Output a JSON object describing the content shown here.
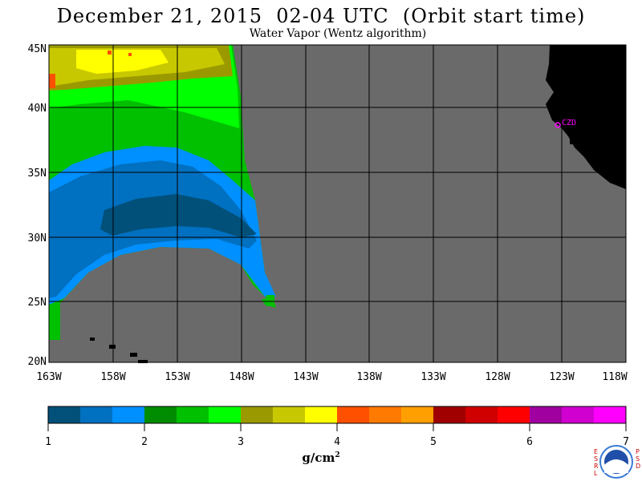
{
  "title": "December 21, 2015  02-04 UTC  (Orbit start time)",
  "subtitle": "Water Vapor (Wentz algorithm)",
  "map": {
    "lat_labels": [
      "45N",
      "40N",
      "35N",
      "30N",
      "25N",
      "20N"
    ],
    "lon_labels": [
      "163W",
      "158W",
      "153W",
      "148W",
      "143W",
      "138W",
      "133W",
      "128W",
      "123W",
      "118W"
    ],
    "station_label": "CZD",
    "colors": {
      "background": "#6a6a6a",
      "land": "#000000",
      "grid": "#000000",
      "station": "#ff00ff"
    }
  },
  "colorbar": {
    "ticks": [
      "1",
      "2",
      "3",
      "4",
      "5",
      "6",
      "7"
    ],
    "unit_base": "g/cm",
    "unit_exp": "2",
    "colors": [
      "#00507a",
      "#0070c0",
      "#0090ff",
      "#008c00",
      "#00c000",
      "#00ff00",
      "#9a9a00",
      "#c8c800",
      "#ffff00",
      "#ff5000",
      "#ff7a00",
      "#ffa000",
      "#a00000",
      "#d00000",
      "#ff0000",
      "#a000a0",
      "#d000d0",
      "#ff00ff"
    ]
  },
  "logo": {
    "left_letters": "ESRL",
    "right_letters": "PSD",
    "name": "NOAA"
  }
}
